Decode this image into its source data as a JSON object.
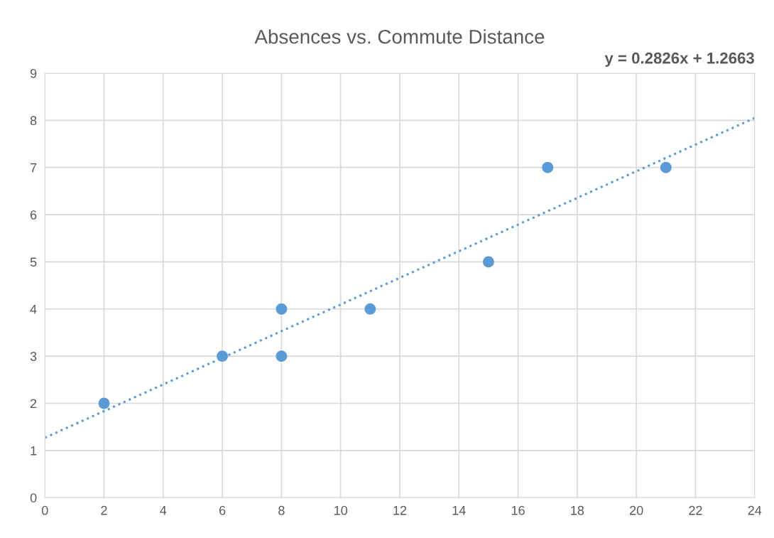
{
  "chart_data": {
    "type": "scatter",
    "title": "Absences vs. Commute Distance",
    "annotations": [
      "y = 0.2826x + 1.2663"
    ],
    "series": [
      {
        "color": "#5b9bd5",
        "marker": "circle",
        "x": [
          2,
          6,
          8,
          8,
          11,
          15,
          17,
          21
        ],
        "values": [
          2,
          3,
          4,
          3,
          4,
          5,
          7,
          7
        ]
      },
      {
        "type": "line",
        "color": "#5b9bd5",
        "marker": "none",
        "line_style": "dotted",
        "x": [
          0,
          24
        ],
        "values": [
          1.27,
          8.05
        ]
      }
    ],
    "xlim": [
      0,
      24
    ],
    "xticks": [
      0,
      2,
      4,
      6,
      8,
      10,
      12,
      14,
      16,
      18,
      20,
      22,
      24
    ],
    "ylim": [
      0,
      9
    ],
    "yticks": [
      0,
      1,
      2,
      3,
      4,
      5,
      6,
      7,
      8,
      9
    ],
    "grid": true
  }
}
